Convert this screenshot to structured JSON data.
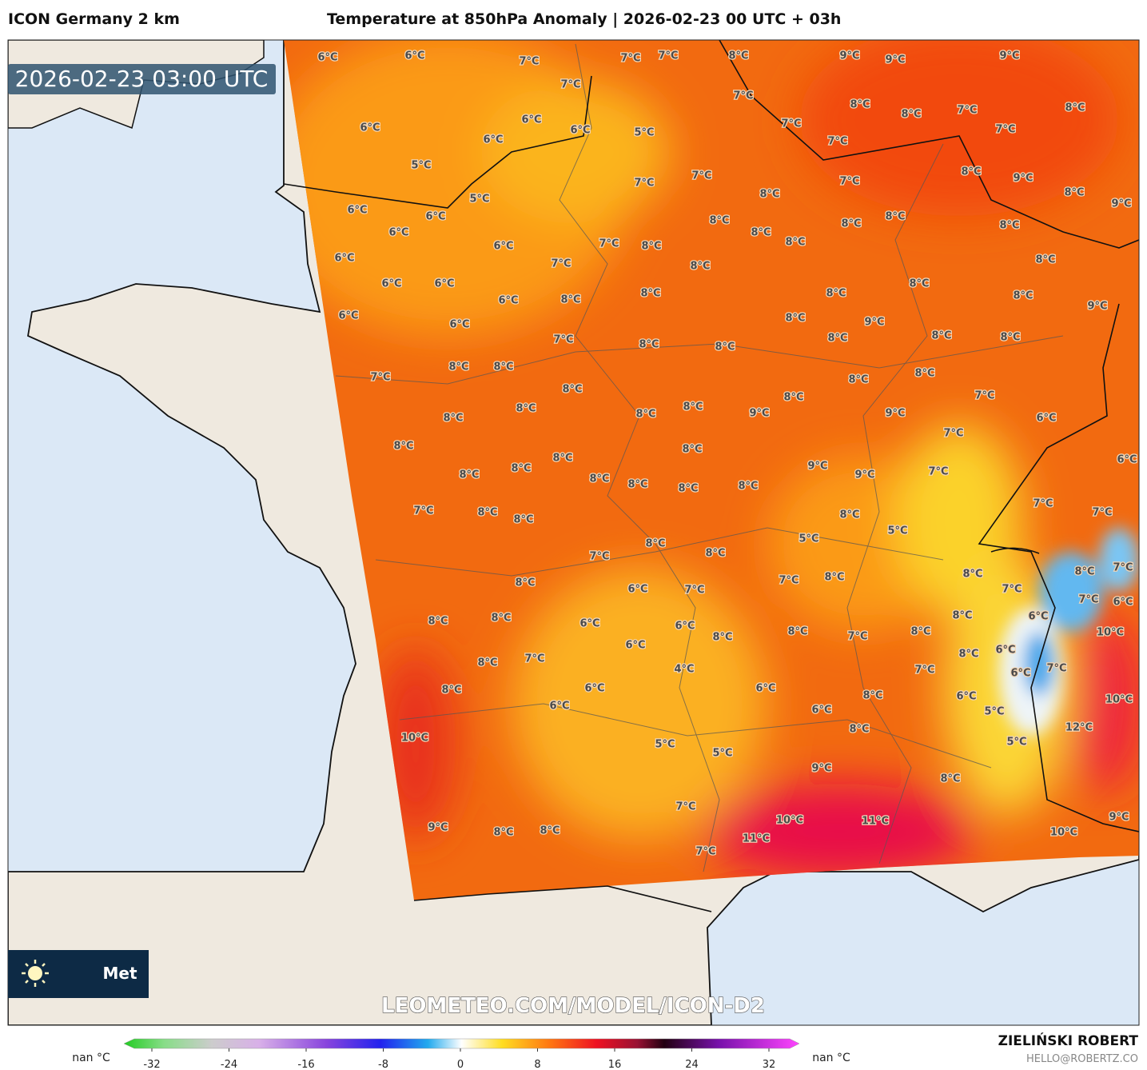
{
  "header": {
    "model": "ICON Germany 2 km",
    "title": "Temperature at 850hPa Anomaly | 2026-02-23 00 UTC + 03h"
  },
  "map": {
    "timestamp": "2026-02-23 03:00 UTC",
    "watermark": "LEOMETEO.COM/MODEL/ICON-D2",
    "logo": "Met",
    "labels": [
      "6°C",
      "6°C",
      "7°C",
      "7°C",
      "7°C",
      "8°C",
      "9°C",
      "9°C",
      "9°C",
      "7°C",
      "6°C",
      "6°C",
      "6°C",
      "6°C",
      "5°C",
      "7°C",
      "7°C",
      "8°C",
      "8°C",
      "7°C",
      "8°C",
      "7°C",
      "5°C",
      "7°C",
      "5°C",
      "6°C",
      "6°C",
      "6°C",
      "7°C",
      "7°C",
      "8°C",
      "7°C",
      "8°C",
      "9°C",
      "8°C",
      "9°C",
      "6°C",
      "6°C",
      "7°C",
      "8°C",
      "8°C",
      "8°C",
      "8°C",
      "8°C",
      "8°C",
      "8°C",
      "8°C",
      "6°C",
      "6°C",
      "7°C",
      "8°C",
      "8°C",
      "8°C",
      "8°C",
      "8°C",
      "8°C",
      "9°C",
      "6°C",
      "6°C",
      "6°C",
      "7°C",
      "8°C",
      "8°C",
      "8°C",
      "9°C",
      "8°C",
      "8°C",
      "8°C",
      "7°C",
      "8°C",
      "8°C",
      "8°C",
      "8°C",
      "8°C",
      "8°C",
      "7°C",
      "8°C",
      "8°C",
      "8°C",
      "8°C",
      "9°C",
      "9°C",
      "6°C",
      "8°C",
      "8°C",
      "8°C",
      "7°C",
      "6°C",
      "8°C",
      "8°C",
      "8°C",
      "8°C",
      "8°C",
      "8°C",
      "9°C",
      "9°C",
      "7°C",
      "7°C",
      "8°C",
      "8°C",
      "8°C",
      "7°C",
      "7°C",
      "5°C",
      "5°C",
      "8°C",
      "8°C",
      "7°C",
      "8°C",
      "8°C",
      "7°C",
      "8°C",
      "6°C",
      "7°C",
      "7°C",
      "8°C",
      "7°C",
      "7°C",
      "6°C",
      "8°C",
      "8°C",
      "6°C",
      "6°C",
      "8°C",
      "6°C",
      "10°C",
      "6°C",
      "8°C",
      "8°C",
      "7°C",
      "8°C",
      "8°C",
      "6°C",
      "8°C",
      "7°C",
      "4°C",
      "7°C",
      "6°C",
      "7°C",
      "8°C",
      "6°C",
      "6°C",
      "6°C",
      "6°C",
      "8°C",
      "6°C",
      "5°C",
      "10°C",
      "10°C",
      "8°C",
      "12°C",
      "5°C",
      "5°C",
      "5°C",
      "9°C",
      "8°C",
      "7°C",
      "10°C",
      "11°C",
      "9°C",
      "9°C",
      "8°C",
      "8°C",
      "11°C",
      "10°C",
      "7°C"
    ]
  },
  "colorbar": {
    "left": "nan °C",
    "right": "nan °C",
    "ticks": [
      -32,
      -24,
      -16,
      -8,
      0,
      8,
      16,
      24,
      32
    ]
  },
  "footer": {
    "author": "ZIELIŃSKI ROBERT",
    "email": "HELLO@ROBERTZ.CO"
  }
}
